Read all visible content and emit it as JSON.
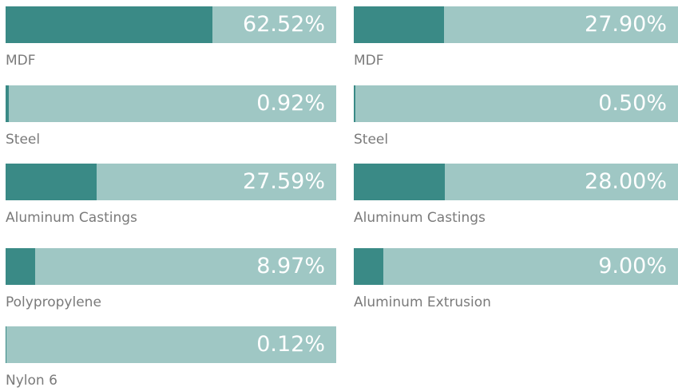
{
  "chart_data": [
    {
      "type": "bar",
      "orientation": "horizontal",
      "categories": [
        "MDF",
        "Steel",
        "Aluminum Castings",
        "Polypropylene",
        "Nylon 6"
      ],
      "values": [
        62.52,
        0.92,
        27.59,
        8.97,
        0.12
      ],
      "value_labels": [
        "62.52%",
        "0.92%",
        "27.59%",
        "8.97%",
        "0.12%"
      ],
      "xlim": [
        0,
        100
      ],
      "color": "#3a8a86",
      "track_color": "#9fc7c4"
    },
    {
      "type": "bar",
      "orientation": "horizontal",
      "categories": [
        "MDF",
        "Steel",
        "Aluminum Castings",
        "Aluminum Extrusion"
      ],
      "values": [
        27.9,
        0.5,
        28.0,
        9.0
      ],
      "value_labels": [
        "27.90%",
        "0.50%",
        "28.00%",
        "9.00%"
      ],
      "xlim": [
        0,
        100
      ],
      "color": "#3a8a86",
      "track_color": "#9fc7c4"
    }
  ]
}
